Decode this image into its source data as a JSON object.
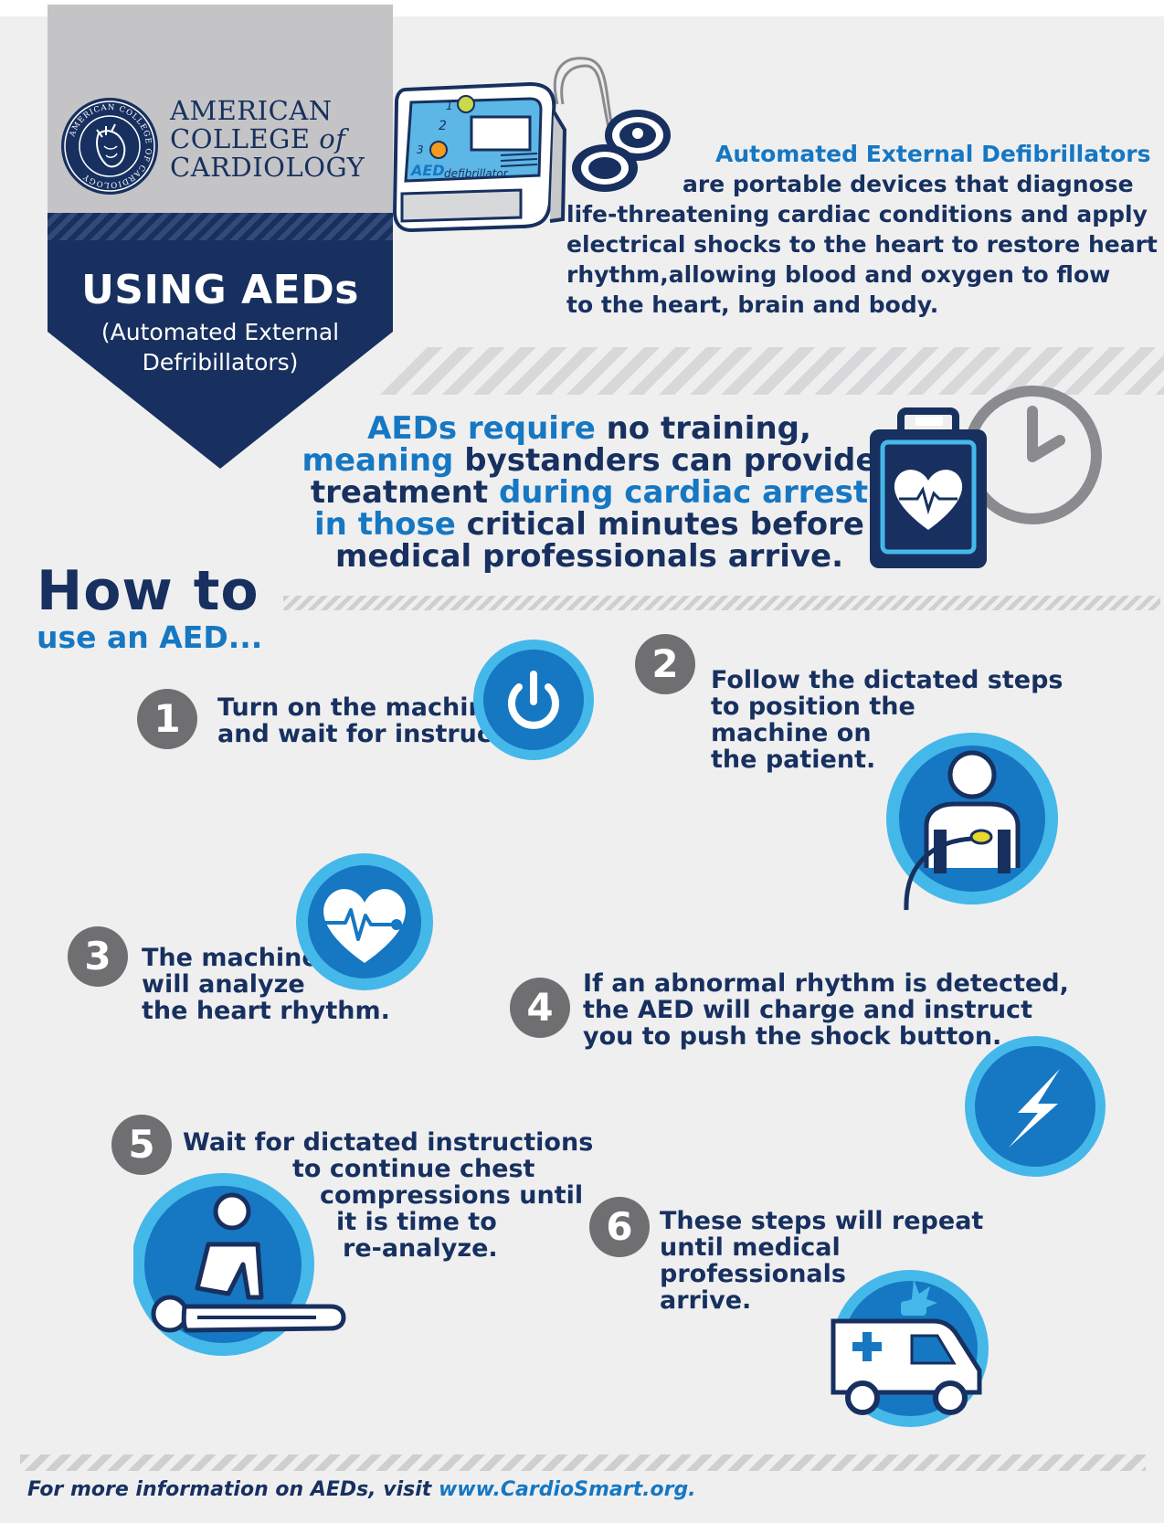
{
  "org": {
    "line1": "AMERICAN",
    "line2a": "COLLEGE ",
    "line2b": "of",
    "line3": "CARDIOLOGY",
    "seal_text": "AMERICAN COLLEGE OF CARDIOLOGY"
  },
  "banner": {
    "title": "USING AEDs",
    "subtitle_line1": "(Automated External",
    "subtitle_line2": "Defribillators)"
  },
  "device": {
    "label_aed": "AED",
    "label_defib": "defibrillator",
    "button_1": "1",
    "button_2": "2",
    "button_3": "3"
  },
  "intro": {
    "highlight": "Automated External Defibrillators",
    "line2": "are portable devices that diagnose",
    "line3": "life-threatening cardiac conditions and apply",
    "line4": "electrical shocks to the heart to restore heart",
    "line5": "rhythm,allowing blood and oxygen to flow",
    "line6": "to the heart, brain and body."
  },
  "training": {
    "l1a": "AEDs require",
    "l1b": " no training,",
    "l2a": "meaning",
    "l2b": " bystanders can provide",
    "l3a": "treatment",
    "l3b": " during cardiac arrest",
    "l4a": "in those",
    "l4b": " critical minutes before",
    "l5": "medical professionals arrive."
  },
  "howto": {
    "title": "How to",
    "subtitle": "use an AED..."
  },
  "steps": [
    {
      "num": "1",
      "lines": [
        "Turn on the machine",
        "and wait for instructions."
      ],
      "icon": "power-icon"
    },
    {
      "num": "2",
      "lines": [
        "Follow the dictated steps",
        "to position the",
        "machine on",
        "the patient."
      ],
      "icon": "patient-pads-icon"
    },
    {
      "num": "3",
      "lines": [
        "The machine",
        "will analyze",
        "the heart rhythm."
      ],
      "icon": "heart-rhythm-icon"
    },
    {
      "num": "4",
      "lines": [
        "If an abnormal rhythm is detected,",
        "the AED will charge and instruct",
        "you to push the shock button."
      ],
      "icon": "lightning-icon"
    },
    {
      "num": "5",
      "lines": [
        "Wait for dictated instructions",
        "to continue chest",
        "compressions until",
        "it is time to",
        "re-analyze."
      ],
      "icon": "cpr-icon"
    },
    {
      "num": "6",
      "lines": [
        "These steps will repeat",
        "until medical",
        "professionals",
        "arrive."
      ],
      "icon": "ambulance-icon"
    }
  ],
  "footer": {
    "text": "For more information on AEDs, visit ",
    "link": "www.CardioSmart.org."
  },
  "colors": {
    "navy": "#17305f",
    "blue": "#1677c2",
    "light_blue": "#45b8ea",
    "grey": "#6f6f72"
  }
}
